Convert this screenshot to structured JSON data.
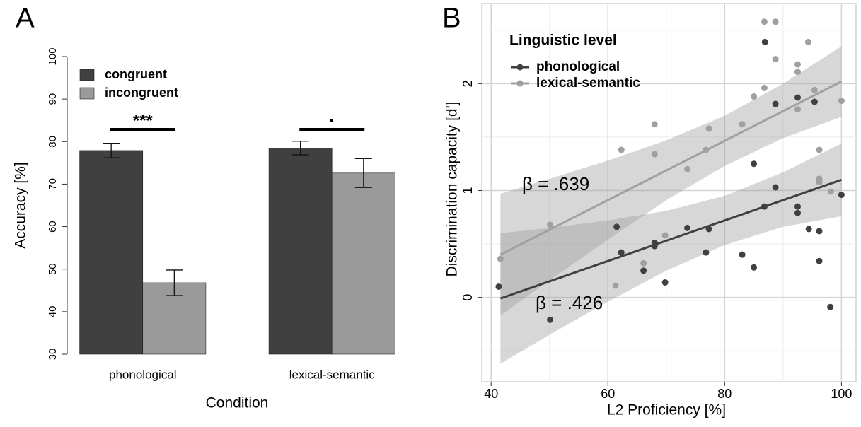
{
  "chart_data": [
    {
      "type": "bar",
      "panel_label": "A",
      "xlabel": "Condition",
      "ylabel": "Accuracy [%]",
      "categories": [
        "phonological",
        "lexical-semantic"
      ],
      "series": [
        {
          "name": "congruent",
          "color": "#404040",
          "values": [
            77.9,
            78.5
          ],
          "errors": [
            1.7,
            1.6
          ]
        },
        {
          "name": "incongruent",
          "color": "#9a9a9a",
          "values": [
            46.8,
            72.6
          ],
          "errors": [
            3.0,
            3.4
          ]
        }
      ],
      "significance": [
        "***",
        "·"
      ],
      "ylim": [
        30,
        100
      ],
      "yticks": [
        30,
        40,
        50,
        60,
        70,
        80,
        90,
        100
      ]
    },
    {
      "type": "scatter",
      "panel_label": "B",
      "xlabel": "L2 Proficiency [%]",
      "ylabel": "Discrimination capacity [d']",
      "legend_title": "Linguistic level",
      "series": [
        {
          "name": "phonological",
          "color": "#404040",
          "annotation": "β = .426",
          "x": [
            41.3,
            50.1,
            61.5,
            62.3,
            66.1,
            68,
            68,
            69.8,
            73.6,
            76.8,
            77.3,
            83,
            85,
            85,
            86.9,
            86.8,
            88.7,
            88.7,
            92.5,
            92.5,
            92.5,
            94.4,
            95.4,
            96.2,
            96.2,
            96.2,
            98.1,
            100
          ],
          "values": [
            0.1,
            -0.21,
            0.66,
            0.42,
            0.25,
            0.51,
            0.48,
            0.14,
            0.65,
            0.42,
            0.64,
            0.4,
            1.25,
            0.28,
            2.39,
            0.85,
            1.03,
            1.81,
            1.87,
            0.85,
            0.79,
            0.64,
            1.83,
            0.62,
            0.34,
            1.08,
            -0.09,
            0.96
          ],
          "fit_x": [
            41.6,
            50,
            60,
            70,
            80,
            90,
            100
          ],
          "fit": [
            -0.01,
            0.15,
            0.34,
            0.53,
            0.72,
            0.91,
            1.1
          ],
          "ci_lower": [
            -0.62,
            -0.35,
            -0.04,
            0.25,
            0.49,
            0.66,
            0.76
          ],
          "ci_upper": [
            0.6,
            0.65,
            0.72,
            0.81,
            0.95,
            1.17,
            1.44
          ]
        },
        {
          "name": "lexical-semantic",
          "color": "#a0a0a0",
          "annotation": "β = .639",
          "x": [
            41.6,
            50.1,
            61.3,
            62.3,
            66.1,
            68,
            68,
            69.8,
            73.6,
            76.8,
            77.3,
            83,
            85,
            86.8,
            86.8,
            88.7,
            88.7,
            92.5,
            92.5,
            92.5,
            94.3,
            95.4,
            96.2,
            96.2,
            96.2,
            98.2,
            100
          ],
          "values": [
            0.36,
            0.68,
            0.11,
            1.38,
            0.32,
            1.62,
            1.34,
            0.58,
            1.2,
            1.38,
            1.58,
            1.62,
            1.88,
            2.58,
            1.96,
            2.58,
            2.23,
            2.18,
            2.11,
            1.76,
            2.39,
            1.94,
            1.38,
            1.11,
            1.08,
            0.99,
            1.84
          ],
          "fit_x": [
            41.6,
            50,
            60,
            70,
            80,
            90,
            100
          ],
          "fit": [
            0.4,
            0.633,
            0.91,
            1.188,
            1.465,
            1.743,
            2.02
          ],
          "ci_lower": [
            -0.17,
            0.16,
            0.54,
            0.91,
            1.23,
            1.49,
            1.69
          ],
          "ci_upper": [
            0.97,
            1.11,
            1.28,
            1.47,
            1.7,
            2.0,
            2.35
          ]
        }
      ],
      "xlim": [
        38.4,
        102.5
      ],
      "ylim": [
        -0.79,
        2.75
      ],
      "xticks": [
        40,
        60,
        80,
        100
      ],
      "yticks": [
        0,
        1,
        2
      ],
      "minor_xticks": [
        50,
        70,
        90
      ],
      "minor_yticks": [
        -0.5,
        0.5,
        1.5,
        2.5
      ],
      "grid": true
    }
  ]
}
